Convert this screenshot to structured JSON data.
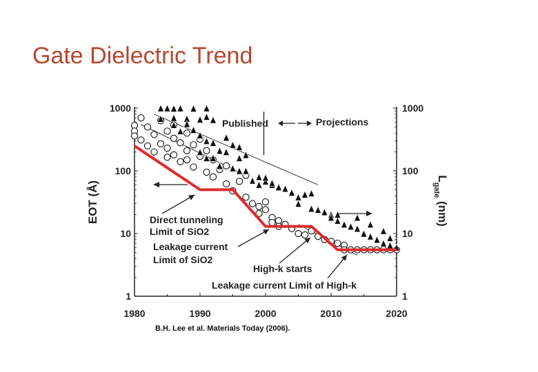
{
  "slide": {
    "title": "Gate Dielectric Trend"
  },
  "chart_data": {
    "type": "scatter",
    "xlim": [
      1980,
      2020
    ],
    "ylim": [
      1,
      1000
    ],
    "log_y": true,
    "x_ticks": [
      "1980",
      "1990",
      "2000",
      "2010",
      "2020"
    ],
    "y_ticks": [
      "1000",
      "100",
      "10",
      "1"
    ],
    "y2_ticks": [
      "1000",
      "100",
      "10",
      "1"
    ],
    "ylabel": "EOT (Å)",
    "y2label_main": "L",
    "y2label_sub": "gate",
    "y2label_unit": "(nm)",
    "annotations": {
      "published": "Published",
      "projections": "Projections",
      "direct_line1": "Direct tunneling",
      "direct_line2": "Limit of SiO2",
      "leak_line1": "Leakage current",
      "leak_line2": "Limit of SiO2",
      "highk_starts": "High-k starts",
      "leak_highk": "Leakage current Limit of High-k"
    },
    "citation": "B.H. Lee et al. Materials Today (2006).",
    "colors": {
      "limit_line": "#dd2b2b",
      "markers": "#111111"
    },
    "series": [
      {
        "marker": "circle",
        "points": [
          [
            1980,
            530
          ],
          [
            1980,
            430
          ],
          [
            1980,
            360
          ],
          [
            1981,
            700
          ],
          [
            1981,
            310
          ],
          [
            1982,
            500
          ],
          [
            1982,
            250
          ],
          [
            1983,
            380
          ],
          [
            1983,
            200
          ],
          [
            1984,
            630
          ],
          [
            1984,
            270
          ],
          [
            1985,
            430
          ],
          [
            1985,
            230
          ],
          [
            1985,
            165
          ],
          [
            1986,
            540
          ],
          [
            1986,
            330
          ],
          [
            1986,
            180
          ],
          [
            1987,
            280
          ],
          [
            1987,
            140
          ],
          [
            1988,
            400
          ],
          [
            1988,
            210
          ],
          [
            1988,
            150
          ],
          [
            1989,
            260
          ],
          [
            1989,
            115
          ],
          [
            1990,
            320
          ],
          [
            1990,
            170
          ],
          [
            1991,
            210
          ],
          [
            1991,
            95
          ],
          [
            1992,
            150
          ],
          [
            1992,
            80
          ],
          [
            1993,
            105
          ],
          [
            1994,
            120
          ],
          [
            1994,
            62
          ],
          [
            1995,
            48
          ],
          [
            1996,
            68
          ],
          [
            1997,
            85
          ],
          [
            1997,
            38
          ],
          [
            1998,
            30
          ],
          [
            1999,
            27
          ],
          [
            1999,
            21
          ],
          [
            2000,
            32
          ],
          [
            2000,
            24
          ],
          [
            2001,
            18
          ],
          [
            2001,
            15
          ],
          [
            2002,
            16
          ],
          [
            2002,
            13
          ],
          [
            2003,
            14
          ],
          [
            2004,
            12
          ],
          [
            2005,
            10
          ],
          [
            2006,
            9.5
          ],
          [
            2007,
            11
          ],
          [
            2008,
            9
          ],
          [
            2009,
            8
          ],
          [
            2010,
            7.5
          ],
          [
            2011,
            7
          ],
          [
            2012,
            6.5
          ],
          [
            2012,
            5.5
          ],
          [
            2013,
            5.5
          ],
          [
            2014,
            5.5
          ],
          [
            2015,
            5.5
          ],
          [
            2016,
            5.5
          ],
          [
            2017,
            5.5
          ],
          [
            2018,
            5.5
          ],
          [
            2019,
            5.5
          ],
          [
            2020,
            5.5
          ]
        ]
      },
      {
        "marker": "triangle",
        "points": [
          [
            1984,
            1000
          ],
          [
            1985,
            1000
          ],
          [
            1986,
            990
          ],
          [
            1987,
            1000
          ],
          [
            1989,
            990
          ],
          [
            1991,
            1000
          ],
          [
            1984,
            680
          ],
          [
            1986,
            700
          ],
          [
            1988,
            680
          ],
          [
            1990,
            660
          ],
          [
            1991,
            730
          ],
          [
            1992,
            650
          ],
          [
            1986,
            540
          ],
          [
            1988,
            560
          ],
          [
            1989,
            450
          ],
          [
            1990,
            370
          ],
          [
            1992,
            280
          ],
          [
            1994,
            340
          ],
          [
            1995,
            260
          ],
          [
            1996,
            240
          ],
          [
            1997,
            180
          ],
          [
            1990,
            200
          ],
          [
            1991,
            160
          ],
          [
            1992,
            160
          ],
          [
            1993,
            120
          ],
          [
            1994,
            200
          ],
          [
            1995,
            110
          ],
          [
            1996,
            100
          ],
          [
            1997,
            100
          ],
          [
            1998,
            70
          ],
          [
            1999,
            60
          ],
          [
            2000,
            68
          ],
          [
            2001,
            60
          ],
          [
            2002,
            55
          ],
          [
            1999,
            80
          ],
          [
            2000,
            78
          ],
          [
            2001,
            64
          ],
          [
            2003,
            52
          ],
          [
            2004,
            45
          ],
          [
            2005,
            38
          ],
          [
            2005,
            30
          ],
          [
            2006,
            42
          ],
          [
            2007,
            44
          ],
          [
            2007,
            25
          ],
          [
            2008,
            24
          ],
          [
            2009,
            22
          ],
          [
            2010,
            20
          ],
          [
            2010,
            18
          ],
          [
            2011,
            16
          ],
          [
            2012,
            14
          ],
          [
            2013,
            13
          ],
          [
            2014,
            12
          ],
          [
            2015,
            10
          ],
          [
            2016,
            9
          ],
          [
            2017,
            8
          ],
          [
            2018,
            7
          ],
          [
            2019,
            6.5
          ],
          [
            2020,
            6
          ],
          [
            2019,
            8.5
          ],
          [
            2018,
            11
          ],
          [
            1987,
            430
          ],
          [
            1991,
            300
          ],
          [
            1993,
            210
          ],
          [
            1996,
            160
          ],
          [
            2011,
            20
          ],
          [
            2014,
            18
          ],
          [
            2016,
            14
          ]
        ]
      }
    ],
    "limit_line": [
      [
        1980,
        250
      ],
      [
        1990,
        50
      ],
      [
        1995,
        50
      ],
      [
        2000,
        13
      ],
      [
        2007,
        13
      ],
      [
        2011,
        5.5
      ],
      [
        2020,
        5.5
      ]
    ],
    "trend_lines": [
      [
        [
          1981,
          550
        ],
        [
          1996,
          95
        ]
      ],
      [
        [
          1983,
          800
        ],
        [
          2008,
          60
        ]
      ],
      [
        [
          2005,
          14
        ],
        [
          2014,
          4.5
        ]
      ]
    ],
    "dividers": {
      "x": 1995
    }
  }
}
